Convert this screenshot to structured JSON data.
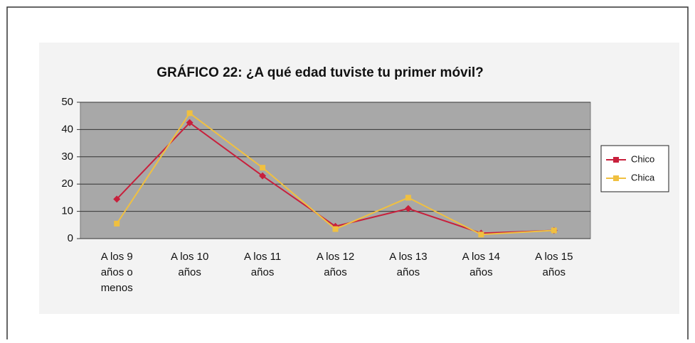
{
  "chart_data": {
    "type": "line",
    "title": "GRÁFICO 22: ¿A qué edad tuviste tu primer móvil?",
    "categories": [
      "A los 9 años o menos",
      "A los 10 años",
      "A los 11 años",
      "A los 12 años",
      "A los 13 años",
      "A los 14 años",
      "A los 15 años"
    ],
    "series": [
      {
        "name": "Chico",
        "color": "#c8203c",
        "values": [
          14.5,
          42.5,
          23,
          4.5,
          11,
          2,
          3
        ]
      },
      {
        "name": "Chica",
        "color": "#f0c040",
        "values": [
          5.5,
          46,
          26,
          3.5,
          15,
          1.5,
          3
        ]
      }
    ],
    "ylim": [
      0,
      50
    ],
    "yticks": [
      0,
      10,
      20,
      30,
      40,
      50
    ],
    "grid": true,
    "legend": "right"
  }
}
